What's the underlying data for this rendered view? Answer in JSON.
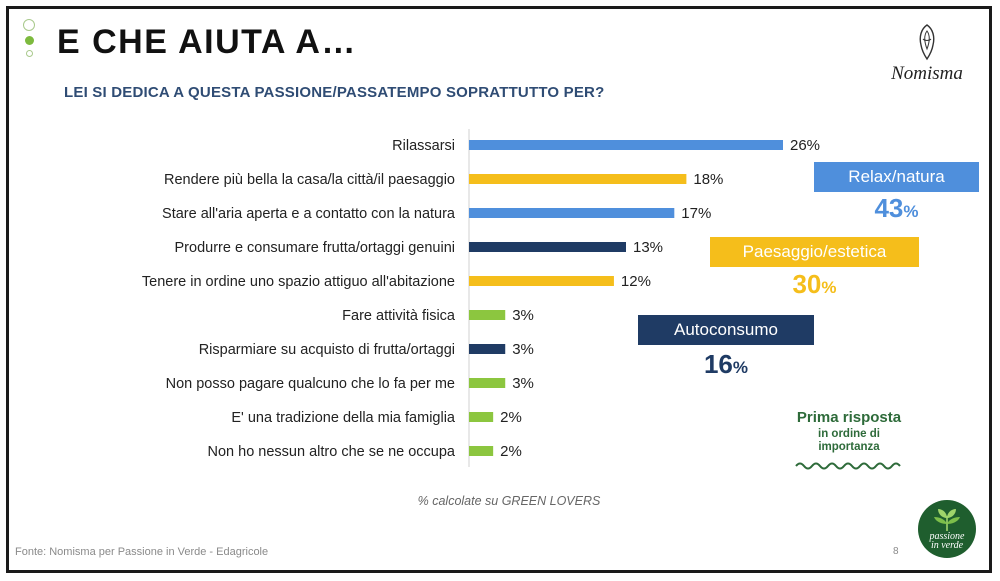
{
  "header": {
    "title": "E CHE AIUTA A…",
    "subtitle": "LEI SI DEDICA A QUESTA PASSIONE/PASSATEMPO SOPRATTUTTO PER?",
    "logo_text": "Nomisma"
  },
  "colors": {
    "relax": "#4f8fdc",
    "paesaggio": "#f5be1b",
    "autoconsumo": "#1f3b64",
    "altro": "#8cc63f",
    "note": "#2e6b3a"
  },
  "chart_data": {
    "type": "bar",
    "orientation": "horizontal",
    "categories": [
      "Rilassarsi",
      "Rendere più bella la casa/la città/il paesaggio",
      "Stare all'aria aperta e a contatto con la natura",
      "Produrre e consumare frutta/ortaggi genuini",
      "Tenere in ordine uno spazio attiguo all'abitazione",
      "Fare attività fisica",
      "Risparmiare su acquisto di frutta/ortaggi",
      "Non posso pagare qualcuno che lo fa per me",
      "E' una tradizione della mia famiglia",
      "Non ho nessun altro che se ne occupa"
    ],
    "values": [
      26,
      18,
      17,
      13,
      12,
      3,
      3,
      3,
      2,
      2
    ],
    "value_labels": [
      "26%",
      "18%",
      "17%",
      "13%",
      "12%",
      "3%",
      "3%",
      "3%",
      "2%",
      "2%"
    ],
    "groups": [
      "relax",
      "paesaggio",
      "relax",
      "autoconsumo",
      "paesaggio",
      "altro",
      "autoconsumo",
      "altro",
      "altro",
      "altro"
    ],
    "unit": "%",
    "xlim": [
      0,
      26
    ],
    "grid": false
  },
  "groups": {
    "relax": {
      "label": "Relax/natura",
      "value": "43",
      "unit": "%"
    },
    "paesaggio": {
      "label": "Paesaggio/estetica",
      "value": "30",
      "unit": "%"
    },
    "autoconsumo": {
      "label": "Autoconsumo",
      "value": "16",
      "unit": "%"
    }
  },
  "note": {
    "title": "Prima risposta",
    "line1": "in ordine di",
    "line2": "importanza"
  },
  "footnote": "% calcolate su GREEN LOVERS",
  "source": "Fonte: Nomisma per Passione in Verde - Edagricole",
  "page_number": "8",
  "partner_logo": {
    "line1": "passione",
    "line2": "in verde"
  }
}
